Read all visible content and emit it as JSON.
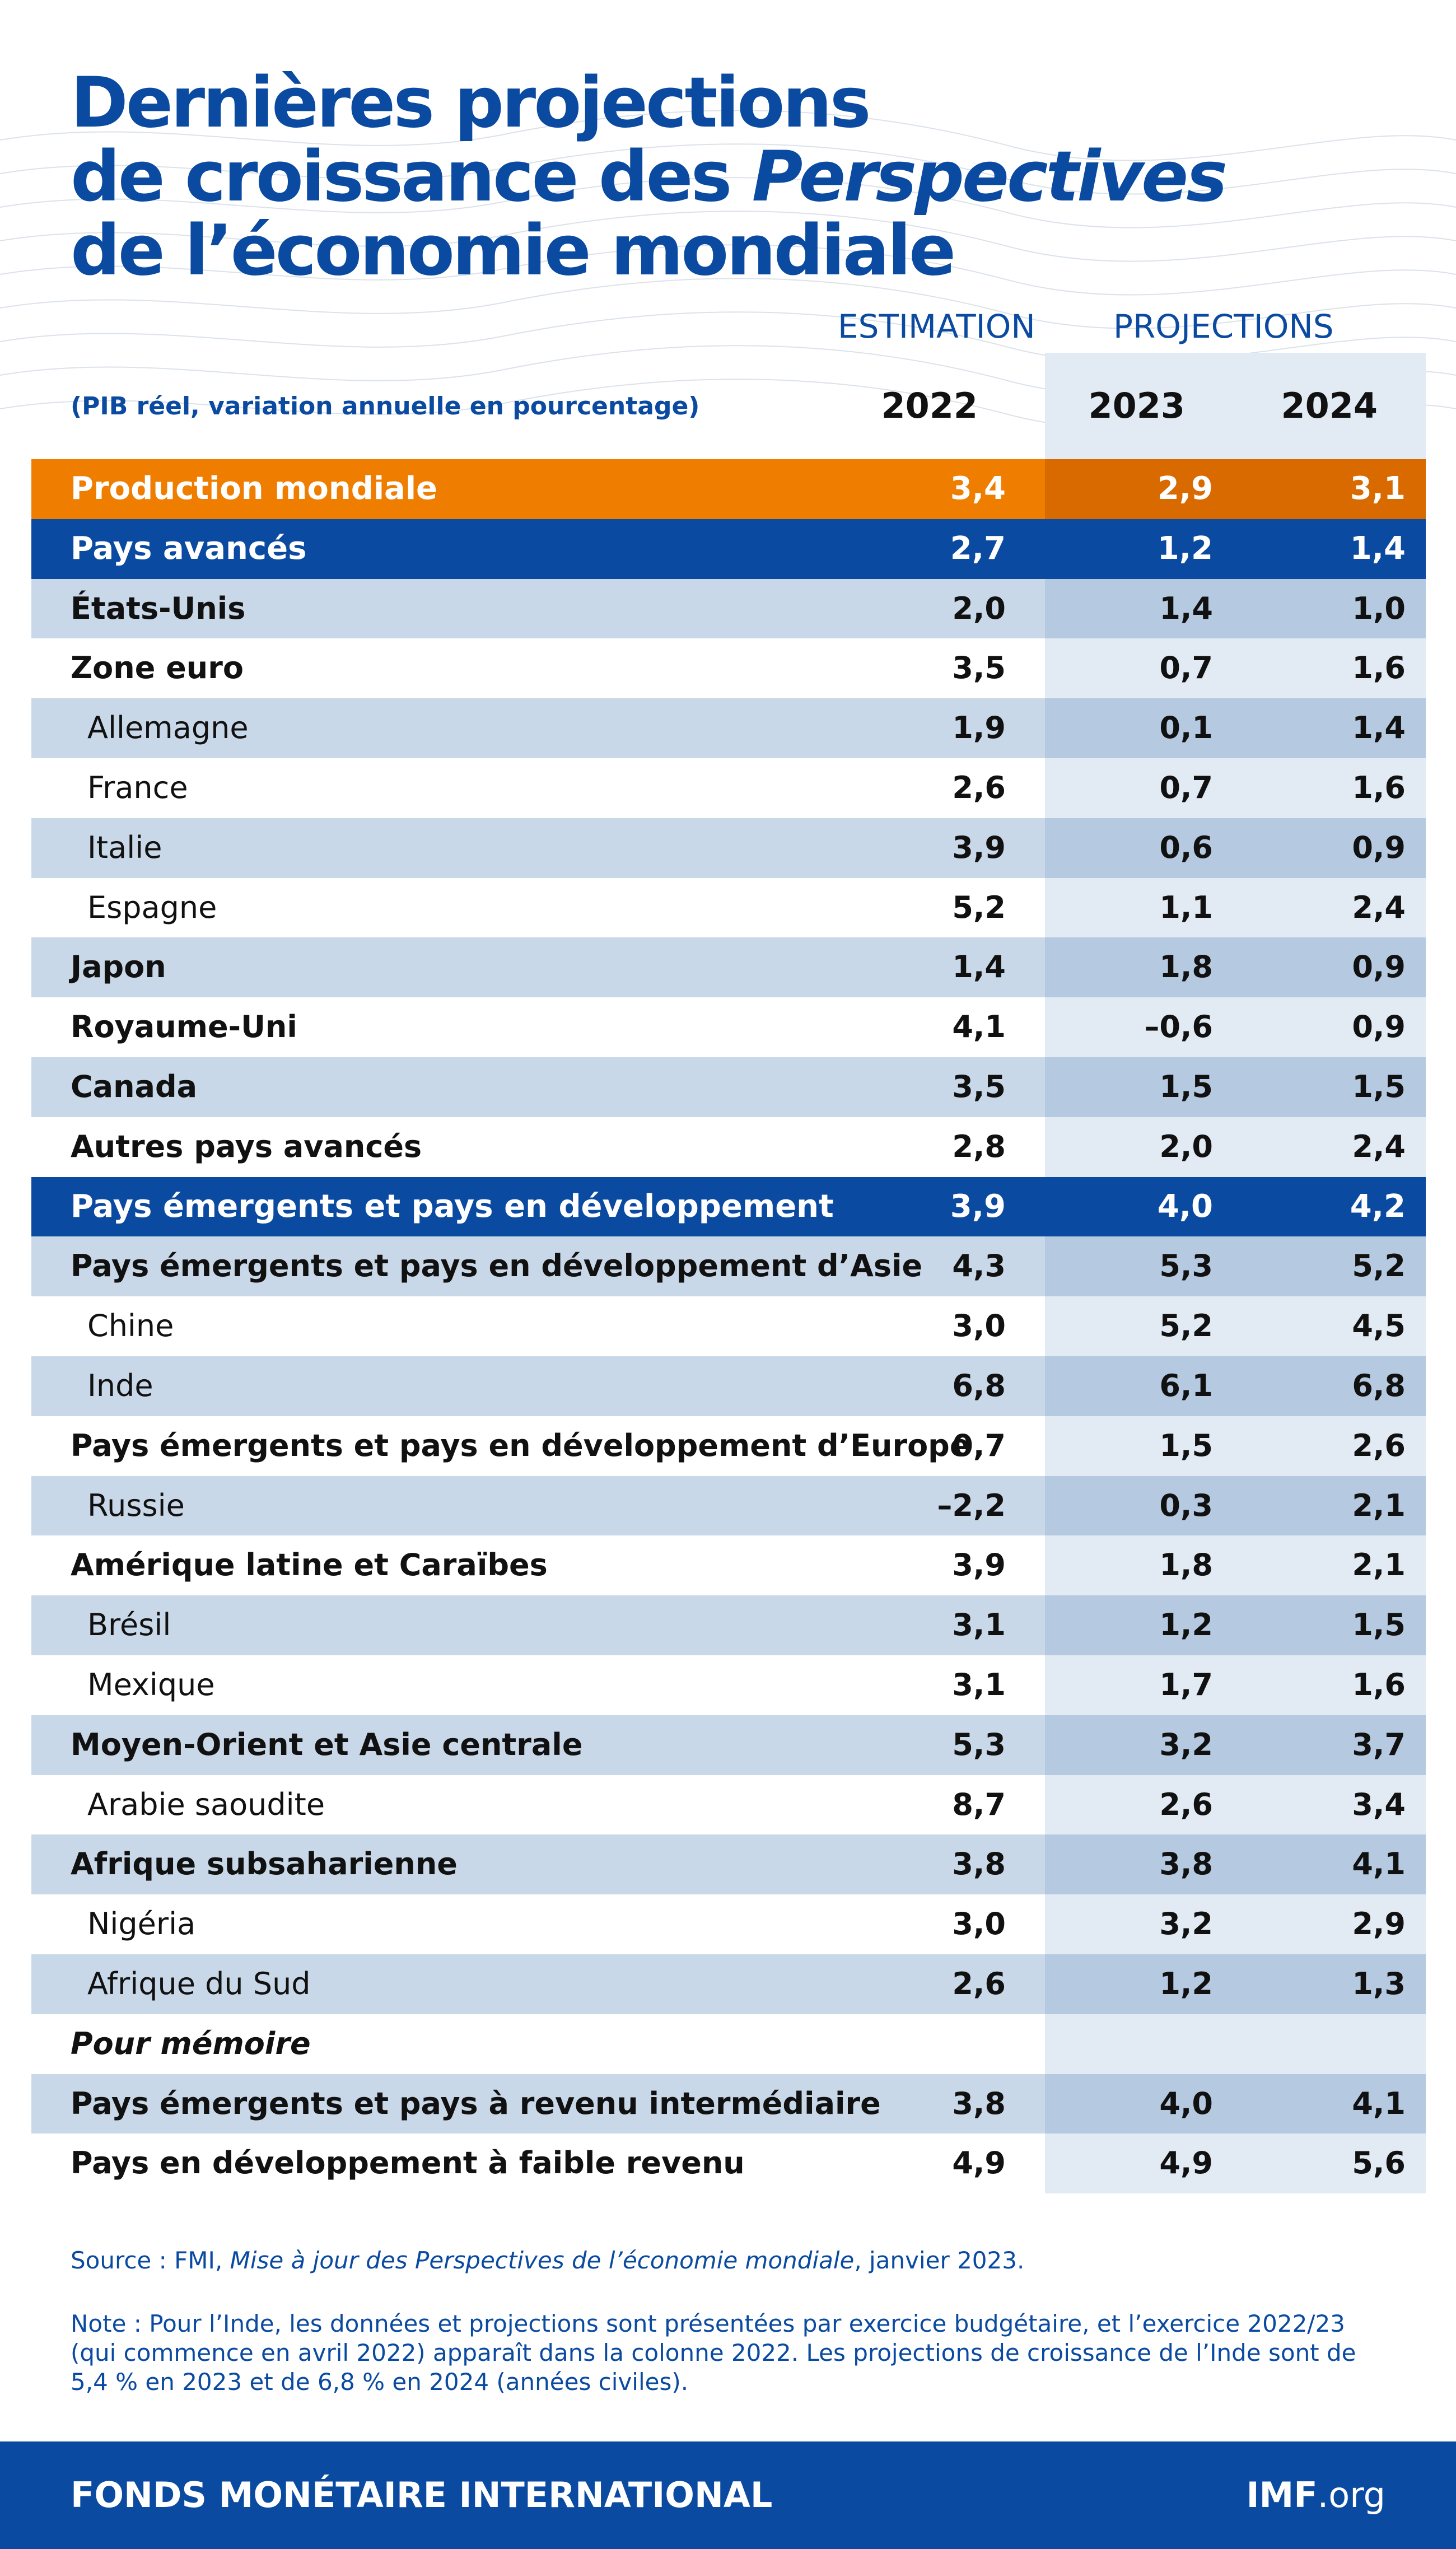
{
  "title": {
    "line1": "Dernières projections",
    "line2a": "de croissance des ",
    "line2b": "Perspectives",
    "line3": "de l’économie mondiale"
  },
  "colors": {
    "brand_blue": "#0a4aa0",
    "world_orange": "#ef7d00",
    "stripe": "#c9d8e8"
  },
  "chart_data": {
    "type": "table",
    "subtitle": "(PIB réel, variation annuelle en pourcentage)",
    "column_groups": [
      "ESTIMATION",
      "PROJECTIONS"
    ],
    "columns": [
      "2022",
      "2023",
      "2024"
    ],
    "rows": [
      {
        "label": "Production mondiale",
        "style": "world",
        "values": [
          "3,4",
          "2,9",
          "3,1"
        ]
      },
      {
        "label": "Pays avancés",
        "style": "group",
        "values": [
          "2,7",
          "1,2",
          "1,4"
        ]
      },
      {
        "label": "États-Unis",
        "style": "main",
        "values": [
          "2,0",
          "1,4",
          "1,0"
        ]
      },
      {
        "label": "Zone euro",
        "style": "main",
        "values": [
          "3,5",
          "0,7",
          "1,6"
        ]
      },
      {
        "label": "Allemagne",
        "style": "sub",
        "values": [
          "1,9",
          "0,1",
          "1,4"
        ]
      },
      {
        "label": "France",
        "style": "sub",
        "values": [
          "2,6",
          "0,7",
          "1,6"
        ]
      },
      {
        "label": "Italie",
        "style": "sub",
        "values": [
          "3,9",
          "0,6",
          "0,9"
        ]
      },
      {
        "label": "Espagne",
        "style": "sub",
        "values": [
          "5,2",
          "1,1",
          "2,4"
        ]
      },
      {
        "label": "Japon",
        "style": "main",
        "values": [
          "1,4",
          "1,8",
          "0,9"
        ]
      },
      {
        "label": "Royaume-Uni",
        "style": "main",
        "values": [
          "4,1",
          "–0,6",
          "0,9"
        ]
      },
      {
        "label": "Canada",
        "style": "main",
        "values": [
          "3,5",
          "1,5",
          "1,5"
        ]
      },
      {
        "label": "Autres pays avancés",
        "style": "main",
        "values": [
          "2,8",
          "2,0",
          "2,4"
        ]
      },
      {
        "label": "Pays émergents et pays en développement",
        "style": "group",
        "values": [
          "3,9",
          "4,0",
          "4,2"
        ]
      },
      {
        "label": "Pays émergents et pays en développement d’Asie",
        "style": "main",
        "values": [
          "4,3",
          "5,3",
          "5,2"
        ]
      },
      {
        "label": "Chine",
        "style": "sub",
        "values": [
          "3,0",
          "5,2",
          "4,5"
        ]
      },
      {
        "label": "Inde",
        "style": "sub",
        "values": [
          "6,8",
          "6,1",
          "6,8"
        ]
      },
      {
        "label": "Pays émergents et pays en développement d’Europe",
        "style": "main",
        "values": [
          "0,7",
          "1,5",
          "2,6"
        ]
      },
      {
        "label": "Russie",
        "style": "sub",
        "values": [
          "–2,2",
          "0,3",
          "2,1"
        ]
      },
      {
        "label": "Amérique latine et Caraïbes",
        "style": "main",
        "values": [
          "3,9",
          "1,8",
          "2,1"
        ]
      },
      {
        "label": "Brésil",
        "style": "sub",
        "values": [
          "3,1",
          "1,2",
          "1,5"
        ]
      },
      {
        "label": "Mexique",
        "style": "sub",
        "values": [
          "3,1",
          "1,7",
          "1,6"
        ]
      },
      {
        "label": "Moyen-Orient et Asie centrale",
        "style": "main",
        "values": [
          "5,3",
          "3,2",
          "3,7"
        ]
      },
      {
        "label": "Arabie saoudite",
        "style": "sub",
        "values": [
          "8,7",
          "2,6",
          "3,4"
        ]
      },
      {
        "label": "Afrique subsaharienne",
        "style": "main",
        "values": [
          "3,8",
          "3,8",
          "4,1"
        ]
      },
      {
        "label": "Nigéria",
        "style": "sub",
        "values": [
          "3,0",
          "3,2",
          "2,9"
        ]
      },
      {
        "label": "Afrique du Sud",
        "style": "sub",
        "values": [
          "2,6",
          "1,2",
          "1,3"
        ]
      },
      {
        "label": "Pour mémoire",
        "style": "memo",
        "values": [
          "",
          "",
          ""
        ]
      },
      {
        "label": "Pays émergents et pays à revenu intermédiaire",
        "style": "main",
        "values": [
          "3,8",
          "4,0",
          "4,1"
        ]
      },
      {
        "label": "Pays en développement à faible revenu",
        "style": "main",
        "values": [
          "4,9",
          "4,9",
          "5,6"
        ]
      }
    ]
  },
  "source": {
    "prefix": "Source : FMI, ",
    "italic": "Mise à jour des Perspectives de l’économie mondiale",
    "suffix": ", janvier 2023."
  },
  "note": "Note : Pour l’Inde, les données et projections sont présentées par exercice budgétaire, et l’exercice 2022/23 (qui commence en avril 2022) apparaît dans la colonne 2022. Les projections de croissance de l’Inde sont de 5,4 % en 2023 et de 6,8 % en 2024 (années civiles).",
  "footer": {
    "org": "FONDS MONÉTAIRE INTERNATIONAL",
    "site_bold": "IMF",
    "site_rest": ".org"
  }
}
